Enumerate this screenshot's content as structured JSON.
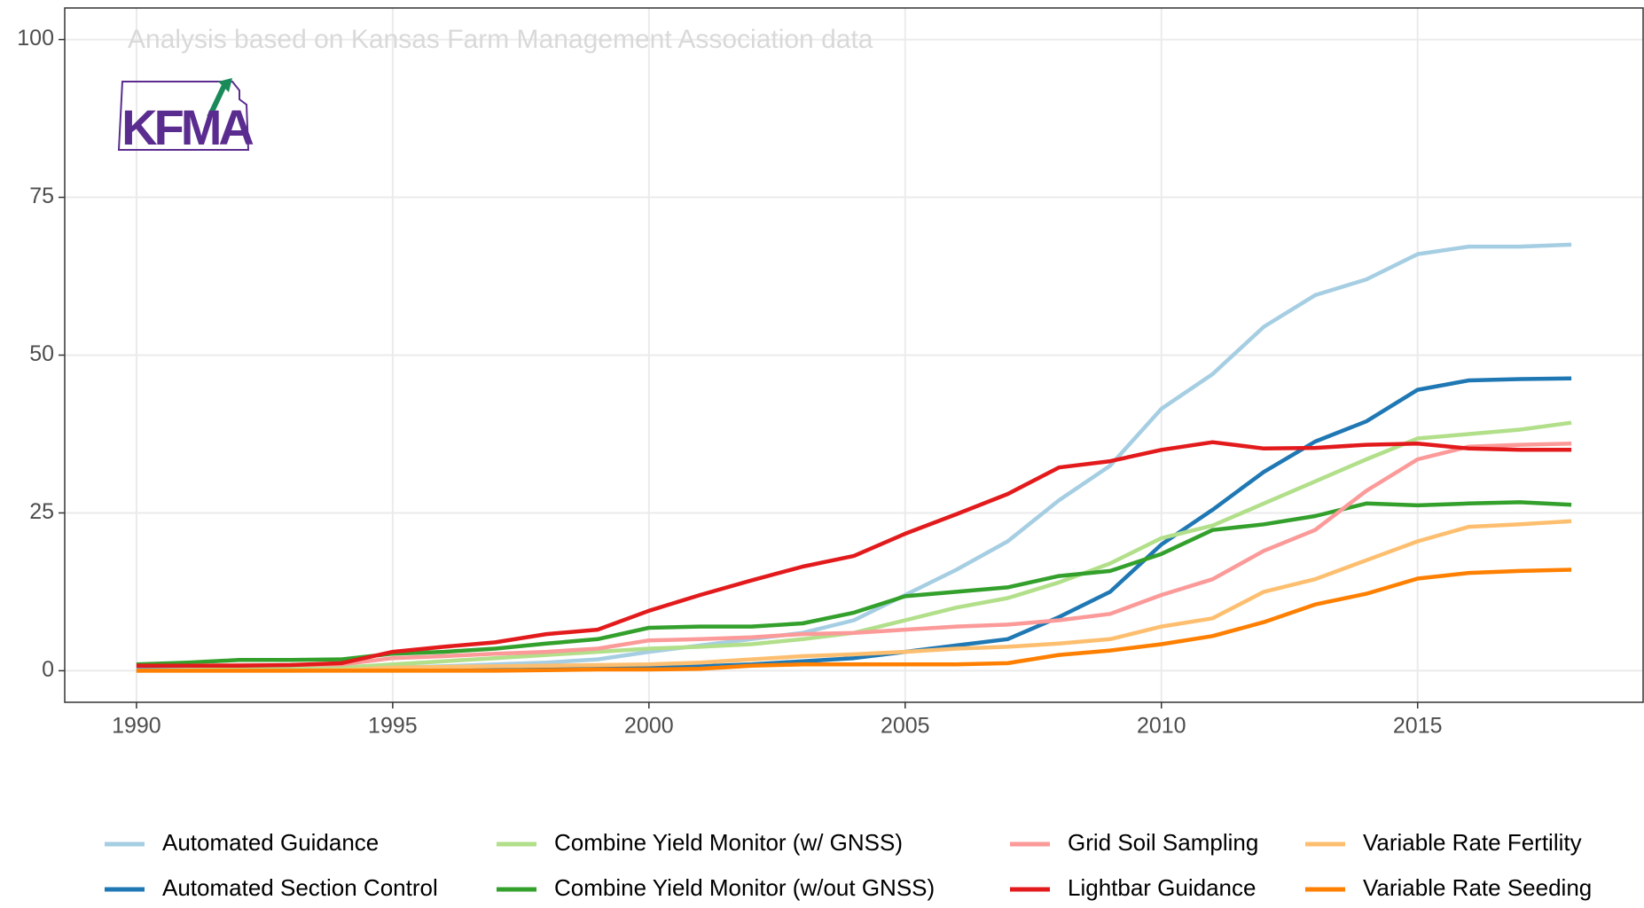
{
  "chart_data": {
    "type": "line",
    "annotation": "Analysis based on Kansas Farm Management Association data",
    "logo_text": "KFMA",
    "x": [
      1990,
      1991,
      1992,
      1993,
      1994,
      1995,
      1996,
      1997,
      1998,
      1999,
      2000,
      2001,
      2002,
      2003,
      2004,
      2005,
      2006,
      2007,
      2008,
      2009,
      2010,
      2011,
      2012,
      2013,
      2014,
      2015,
      2016,
      2017,
      2018
    ],
    "xlim": [
      1988.6,
      2019.4
    ],
    "xticks": [
      1990,
      1995,
      2000,
      2005,
      2010,
      2015
    ],
    "ylim": [
      -5,
      105
    ],
    "yticks": [
      0,
      25,
      50,
      75,
      100
    ],
    "grid": true,
    "legend": "bottom",
    "legend_columns": 4,
    "series": [
      {
        "name": "Automated Guidance",
        "color": "#a6cee3",
        "values": [
          0.3,
          0.3,
          0.3,
          0.3,
          0.4,
          0.5,
          0.7,
          1,
          1.3,
          1.8,
          3,
          4,
          5,
          6,
          8,
          12,
          16,
          20.5,
          27,
          32.5,
          41.5,
          47,
          54.5,
          59.5,
          62,
          66,
          67.2,
          67.2,
          67.5
        ]
      },
      {
        "name": "Automated Section Control",
        "color": "#1f78b4",
        "values": [
          0.1,
          0.1,
          0.1,
          0.1,
          0.1,
          0.1,
          0.1,
          0.1,
          0.2,
          0.3,
          0.5,
          0.7,
          1,
          1.5,
          2,
          3,
          4,
          5,
          8.5,
          12.5,
          20,
          25.5,
          31.5,
          36.3,
          39.5,
          44.5,
          46,
          46.2,
          46.3
        ]
      },
      {
        "name": "Combine Yield Monitor (w/ GNSS)",
        "color": "#b2df8a",
        "values": [
          0,
          0.1,
          0.2,
          0.3,
          0.5,
          1,
          1.5,
          2,
          2.5,
          3,
          3.5,
          3.8,
          4.2,
          5,
          6,
          8,
          10,
          11.5,
          14,
          17,
          21,
          23,
          26.5,
          30,
          33.5,
          36.8,
          37.5,
          38.2,
          39.3
        ]
      },
      {
        "name": "Combine Yield Monitor (w/out GNSS)",
        "color": "#33a02c",
        "values": [
          1,
          1.3,
          1.7,
          1.7,
          1.8,
          2.7,
          3,
          3.5,
          4.3,
          5,
          6.8,
          7,
          7,
          7.5,
          9.2,
          11.8,
          12.5,
          13.2,
          15,
          15.8,
          18.5,
          22.3,
          23.2,
          24.5,
          26.5,
          26.2,
          26.5,
          26.7,
          26.3
        ]
      },
      {
        "name": "Grid Soil Sampling",
        "color": "#fb9a99",
        "values": [
          0.8,
          0.8,
          0.9,
          0.9,
          1,
          2,
          2.3,
          2.7,
          3,
          3.5,
          4.8,
          5,
          5.3,
          5.8,
          6,
          6.5,
          7,
          7.3,
          8,
          9,
          12,
          14.5,
          19,
          22.3,
          28.5,
          33.5,
          35.5,
          35.8,
          36
        ]
      },
      {
        "name": "Lightbar Guidance",
        "color": "#e31a1c",
        "values": [
          0.8,
          0.8,
          0.8,
          0.9,
          1.2,
          3,
          3.8,
          4.5,
          5.8,
          6.5,
          9.5,
          12,
          14.3,
          16.5,
          18.2,
          21.7,
          24.8,
          28,
          32.2,
          33.2,
          35,
          36.2,
          35.2,
          35.3,
          35.8,
          36,
          35.2,
          35,
          35
        ]
      },
      {
        "name": "Variable Rate Fertility",
        "color": "#fdbf6f",
        "values": [
          0,
          0,
          0,
          0,
          0.1,
          0.5,
          0.6,
          0.7,
          0.8,
          0.9,
          1,
          1.3,
          1.8,
          2.3,
          2.6,
          3,
          3.5,
          3.8,
          4.3,
          5,
          7,
          8.3,
          12.5,
          14.5,
          17.5,
          20.5,
          22.8,
          23.2,
          23.7
        ]
      },
      {
        "name": "Variable Rate Seeding",
        "color": "#ff7f00",
        "values": [
          0,
          0,
          0,
          0,
          0,
          0,
          0,
          0,
          0.1,
          0.2,
          0.2,
          0.3,
          0.8,
          1,
          1,
          1,
          1,
          1.2,
          2.5,
          3.2,
          4.2,
          5.5,
          7.7,
          10.5,
          12.2,
          14.6,
          15.5,
          15.8,
          16
        ]
      }
    ]
  }
}
